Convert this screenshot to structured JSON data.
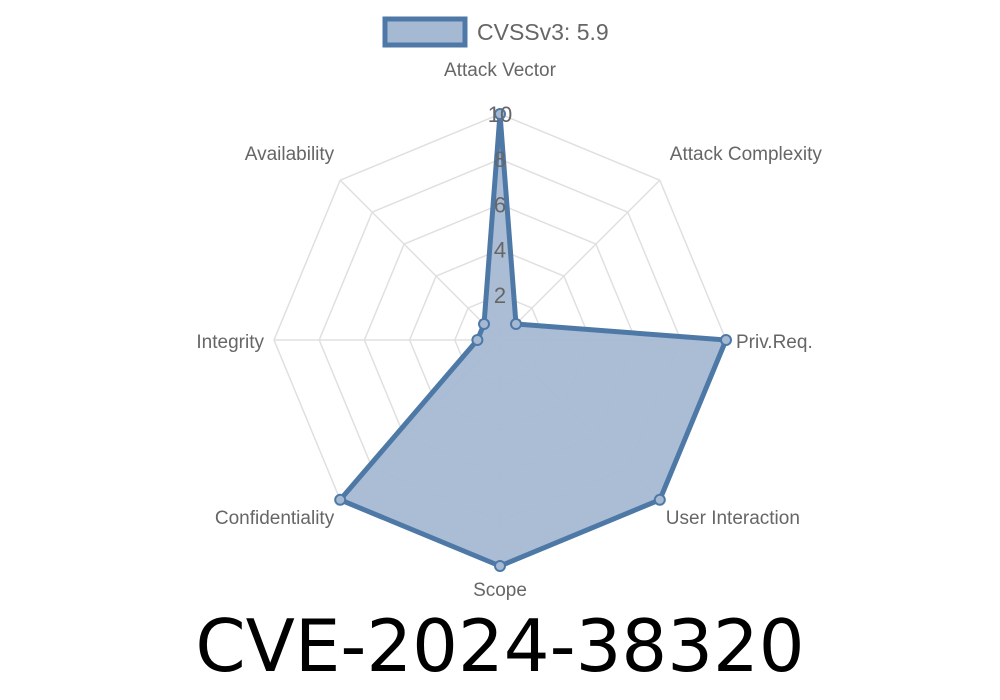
{
  "chart_data": {
    "type": "radar",
    "title": "CVE-2024-38320",
    "legend": {
      "label": "CVSSv3: 5.9",
      "placement": "top"
    },
    "axes": [
      "Attack Vector",
      "Attack Complexity",
      "Priv.Req.",
      "User Interaction",
      "Scope",
      "Confidentiality",
      "Integrity",
      "Availability"
    ],
    "series": [
      {
        "name": "CVSSv3: 5.9",
        "values": [
          10,
          1,
          10,
          10,
          10,
          10,
          1,
          1
        ]
      }
    ],
    "rlim": [
      0,
      10
    ],
    "ticks": [
      "2",
      "4",
      "6",
      "8",
      "10"
    ],
    "tick_values": [
      2,
      4,
      6,
      8,
      10
    ],
    "grid": true,
    "colors": {
      "fill": "#a5b9d3",
      "stroke": "#4e79a7",
      "grid": "#e0e0e0",
      "label": "#666666"
    }
  }
}
